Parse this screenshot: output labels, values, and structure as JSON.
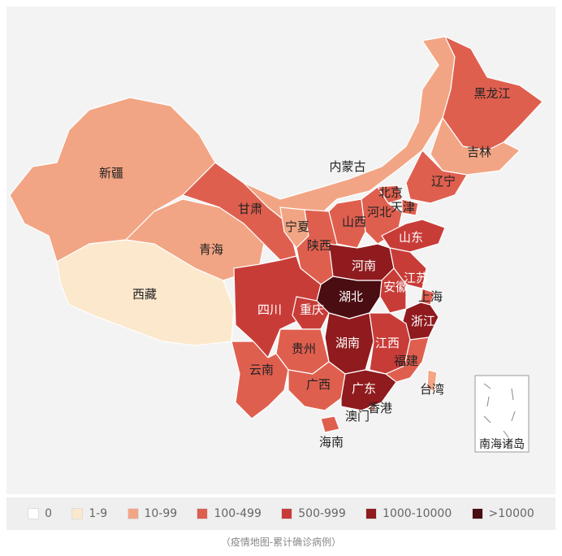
{
  "map": {
    "provinces": [
      {
        "name": "新疆",
        "level": "10-99",
        "color": "#f2a584"
      },
      {
        "name": "西藏",
        "level": "1-9",
        "color": "#fce8cd"
      },
      {
        "name": "青海",
        "level": "10-99",
        "color": "#f2a584"
      },
      {
        "name": "甘肃",
        "level": "100-499",
        "color": "#df5f4f"
      },
      {
        "name": "内蒙古",
        "level": "10-99",
        "color": "#f2a584"
      },
      {
        "name": "宁夏",
        "level": "10-99",
        "color": "#f2a584"
      },
      {
        "name": "陕西",
        "level": "100-499",
        "color": "#df5f4f"
      },
      {
        "name": "山西",
        "level": "100-499",
        "color": "#df5f4f"
      },
      {
        "name": "黑龙江",
        "level": "100-499",
        "color": "#df5f4f"
      },
      {
        "name": "吉林",
        "level": "10-99",
        "color": "#f2a584"
      },
      {
        "name": "辽宁",
        "level": "100-499",
        "color": "#df5f4f"
      },
      {
        "name": "北京",
        "level": "100-499",
        "color": "#df5f4f"
      },
      {
        "name": "天津",
        "level": "100-499",
        "color": "#df5f4f"
      },
      {
        "name": "河北",
        "level": "100-499",
        "color": "#df5f4f"
      },
      {
        "name": "山东",
        "level": "500-999",
        "color": "#c83c38"
      },
      {
        "name": "河南",
        "level": "1000-10000",
        "color": "#8f1b1e"
      },
      {
        "name": "江苏",
        "level": "500-999",
        "color": "#c83c38"
      },
      {
        "name": "安徽",
        "level": "500-999",
        "color": "#c83c38"
      },
      {
        "name": "上海",
        "level": "100-499",
        "color": "#df5f4f"
      },
      {
        "name": "湖北",
        "level": ">10000",
        "color": "#4a0d11"
      },
      {
        "name": "浙江",
        "level": "1000-10000",
        "color": "#8f1b1e"
      },
      {
        "name": "四川",
        "level": "500-999",
        "color": "#c83c38"
      },
      {
        "name": "重庆",
        "level": "500-999",
        "color": "#c83c38"
      },
      {
        "name": "湖南",
        "level": "1000-10000",
        "color": "#8f1b1e"
      },
      {
        "name": "江西",
        "level": "500-999",
        "color": "#c83c38"
      },
      {
        "name": "贵州",
        "level": "100-499",
        "color": "#df5f4f"
      },
      {
        "name": "福建",
        "level": "100-499",
        "color": "#df5f4f"
      },
      {
        "name": "云南",
        "level": "100-499",
        "color": "#df5f4f"
      },
      {
        "name": "广西",
        "level": "100-499",
        "color": "#df5f4f"
      },
      {
        "name": "广东",
        "level": "1000-10000",
        "color": "#8f1b1e"
      },
      {
        "name": "台湾",
        "level": "10-99",
        "color": "#f2a584"
      },
      {
        "name": "香港",
        "level": "10-99",
        "color": "#f2a584"
      },
      {
        "name": "澳门",
        "level": "1-9",
        "color": "#fce8cd"
      },
      {
        "name": "海南",
        "level": "100-499",
        "color": "#df5f4f"
      }
    ],
    "inset_label": "南海诸岛"
  },
  "legend": [
    {
      "label": "0",
      "color": "#ffffff"
    },
    {
      "label": "1-9",
      "color": "#fce8cd"
    },
    {
      "label": "10-99",
      "color": "#f2a584"
    },
    {
      "label": "100-499",
      "color": "#df5f4f"
    },
    {
      "label": "500-999",
      "color": "#c83c38"
    },
    {
      "label": "1000-10000",
      "color": "#8f1b1e"
    },
    {
      "label": ">10000",
      "color": "#4a0d11"
    }
  ],
  "caption": "（疫情地图-累计确诊病例）"
}
